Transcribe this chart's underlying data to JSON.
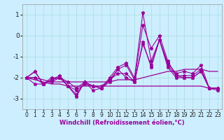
{
  "x": [
    0,
    1,
    2,
    3,
    4,
    5,
    6,
    7,
    8,
    9,
    10,
    11,
    12,
    13,
    14,
    15,
    16,
    17,
    18,
    19,
    20,
    21,
    22,
    23
  ],
  "line1": [
    -2.0,
    -1.7,
    -2.3,
    -2.1,
    -1.9,
    -2.4,
    -2.8,
    -2.2,
    -2.4,
    -2.5,
    -2.0,
    -1.5,
    -1.3,
    -2.0,
    1.1,
    -1.2,
    -0.2,
    -1.3,
    -1.8,
    -1.7,
    -1.8,
    -1.4,
    -2.5,
    -2.5
  ],
  "line2": [
    -2.0,
    -1.7,
    -2.3,
    -2.0,
    -2.0,
    -2.4,
    -2.6,
    -2.3,
    -2.4,
    -2.5,
    -2.1,
    -1.6,
    -1.4,
    -2.1,
    0.5,
    -0.6,
    0.0,
    -1.2,
    -1.9,
    -2.0,
    -2.0,
    -1.7,
    -2.5,
    -2.6
  ],
  "line3": [
    -2.0,
    -2.3,
    -2.3,
    -2.2,
    -2.0,
    -2.4,
    -2.9,
    -2.2,
    -2.6,
    -2.5,
    -2.2,
    -1.6,
    -2.0,
    -2.2,
    -0.3,
    -1.5,
    -0.2,
    -1.5,
    -2.0,
    -2.0,
    -2.0,
    -1.7,
    -2.5,
    -2.5
  ],
  "line4": [
    -2.0,
    -2.0,
    -2.3,
    -2.1,
    -2.0,
    -2.2,
    -2.5,
    -2.2,
    -2.4,
    -2.4,
    -2.1,
    -1.8,
    -1.8,
    -2.2,
    -0.4,
    -1.4,
    -0.2,
    -1.4,
    -1.9,
    -1.9,
    -1.9,
    -1.6,
    -2.5,
    -2.5
  ],
  "line5_flat": [
    -2.0,
    -2.1,
    -2.2,
    -2.3,
    -2.3,
    -2.4,
    -2.4,
    -2.4,
    -2.4,
    -2.4,
    -2.4,
    -2.4,
    -2.4,
    -2.4,
    -2.4,
    -2.4,
    -2.4,
    -2.4,
    -2.4,
    -2.4,
    -2.4,
    -2.4,
    -2.5,
    -2.5
  ],
  "line6_flat": [
    -2.0,
    -2.0,
    -2.1,
    -2.2,
    -2.2,
    -2.2,
    -2.2,
    -2.2,
    -2.2,
    -2.2,
    -2.2,
    -2.1,
    -2.1,
    -2.1,
    -2.0,
    -1.9,
    -1.8,
    -1.7,
    -1.7,
    -1.6,
    -1.6,
    -1.6,
    -1.7,
    -1.7
  ],
  "color": "#990099",
  "bg_color": "#cceeff",
  "grid_color": "#aadddd",
  "xlabel": "Windchill (Refroidissement éolien,°C)",
  "ylim": [
    -3.5,
    1.5
  ],
  "yticks": [
    -3,
    -2,
    -1,
    0,
    1
  ],
  "xticks": [
    0,
    1,
    2,
    3,
    4,
    5,
    6,
    7,
    8,
    9,
    10,
    11,
    12,
    13,
    14,
    15,
    16,
    17,
    18,
    19,
    20,
    21,
    22,
    23
  ],
  "xlabel_fontsize": 6.0,
  "ytick_fontsize": 6.5,
  "xtick_fontsize": 5.5
}
